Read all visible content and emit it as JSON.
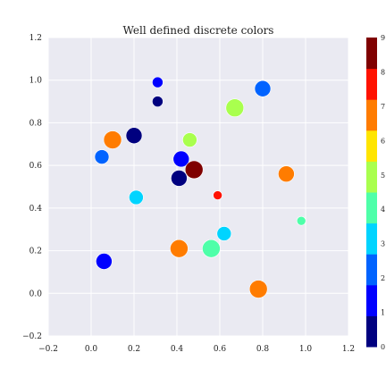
{
  "chart_data": {
    "type": "scatter",
    "title": "Well defined discrete colors",
    "xlabel": "",
    "ylabel": "",
    "xlim": [
      -0.2,
      1.2
    ],
    "ylim": [
      -0.2,
      1.2
    ],
    "grid": true,
    "background_color": "#eaeaf2",
    "x_ticks": [
      "−0.2",
      "0.0",
      "0.2",
      "0.4",
      "0.6",
      "0.8",
      "1.0",
      "1.2"
    ],
    "y_ticks": [
      "−0.2",
      "0.0",
      "0.2",
      "0.4",
      "0.6",
      "0.8",
      "1.0",
      "1.2"
    ],
    "x_tick_values": [
      -0.2,
      0,
      0.2,
      0.4,
      0.6,
      0.8,
      1.0,
      1.2
    ],
    "y_tick_values": [
      -0.2,
      0,
      0.2,
      0.4,
      0.6,
      0.8,
      1.0,
      1.2
    ],
    "colorbar": {
      "min": 0,
      "max": 9,
      "levels": 9,
      "colors": [
        "#00007f",
        "#0000ff",
        "#0063ff",
        "#00d4ff",
        "#4effa9",
        "#a9ff4e",
        "#ffe500",
        "#ff7c00",
        "#ff1200",
        "#7f0000"
      ],
      "tick_values": [
        0,
        1,
        2,
        3,
        4,
        5,
        6,
        7,
        8,
        9
      ],
      "tick_labels": [
        "0",
        "1",
        "2",
        "3",
        "4",
        "5",
        "6",
        "7",
        "8",
        "9"
      ]
    },
    "points": [
      {
        "x": 0.31,
        "y": 0.99,
        "size": 6,
        "color_index": 1
      },
      {
        "x": 0.8,
        "y": 0.96,
        "size": 9,
        "color_index": 2
      },
      {
        "x": 0.31,
        "y": 0.9,
        "size": 6,
        "color_index": 0
      },
      {
        "x": 0.67,
        "y": 0.87,
        "size": 10,
        "color_index": 5
      },
      {
        "x": 0.2,
        "y": 0.74,
        "size": 9,
        "color_index": 0
      },
      {
        "x": 0.1,
        "y": 0.72,
        "size": 10,
        "color_index": 7
      },
      {
        "x": 0.46,
        "y": 0.72,
        "size": 8,
        "color_index": 5
      },
      {
        "x": 0.05,
        "y": 0.64,
        "size": 8,
        "color_index": 2
      },
      {
        "x": 0.42,
        "y": 0.63,
        "size": 9,
        "color_index": 1
      },
      {
        "x": 0.48,
        "y": 0.58,
        "size": 10,
        "color_index": 9
      },
      {
        "x": 0.91,
        "y": 0.56,
        "size": 9,
        "color_index": 7
      },
      {
        "x": 0.41,
        "y": 0.54,
        "size": 9,
        "color_index": 0
      },
      {
        "x": 0.59,
        "y": 0.46,
        "size": 5,
        "color_index": 8
      },
      {
        "x": 0.21,
        "y": 0.45,
        "size": 8,
        "color_index": 3
      },
      {
        "x": 0.98,
        "y": 0.34,
        "size": 5,
        "color_index": 4
      },
      {
        "x": 0.62,
        "y": 0.28,
        "size": 8,
        "color_index": 3
      },
      {
        "x": 0.41,
        "y": 0.21,
        "size": 10,
        "color_index": 7
      },
      {
        "x": 0.56,
        "y": 0.21,
        "size": 10,
        "color_index": 4
      },
      {
        "x": 0.06,
        "y": 0.15,
        "size": 9,
        "color_index": 1
      },
      {
        "x": 0.78,
        "y": 0.02,
        "size": 10,
        "color_index": 7
      }
    ]
  }
}
